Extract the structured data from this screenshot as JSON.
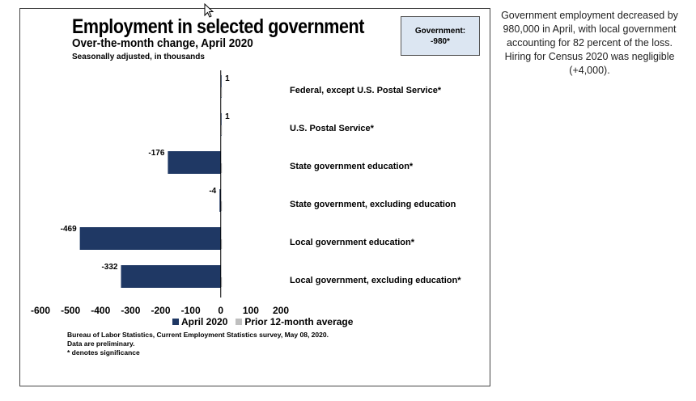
{
  "title": "Employment in selected government",
  "subtitle": "Over-the-month change, April 2020",
  "note": "Seasonally adjusted, in thousands",
  "government_box": {
    "label": "Government:",
    "value": "-980*"
  },
  "legend": [
    {
      "label": "April 2020",
      "color": "#1f3864"
    },
    {
      "label": "Prior 12-month average",
      "color": "#bfbfbf"
    }
  ],
  "source_lines": [
    "Bureau of Labor Statistics, Current Employment Statistics survey, May 08, 2020.",
    "Data are preliminary.",
    "* denotes significance"
  ],
  "side_text": "Government employment decreased by 980,000 in April, with local government accounting for 82 percent of the loss. Hiring for Census 2020 was negligible (+4,000).",
  "chart_data": {
    "type": "bar",
    "orientation": "horizontal",
    "categories": [
      "Federal, except U.S. Postal Service*",
      "U.S. Postal Service*",
      "State government education*",
      "State government, excluding education",
      "Local government education*",
      "Local government, excluding education*"
    ],
    "series": [
      {
        "name": "April 2020",
        "values": [
          1,
          1,
          -176,
          -4,
          -469,
          -332
        ],
        "labels": [
          "1",
          "1",
          "-176",
          "-4",
          "-469",
          "-332"
        ],
        "color": "#1f3864"
      },
      {
        "name": "Prior 12-month average",
        "values": [
          1,
          0,
          1,
          1,
          2,
          2
        ],
        "color": "#bfbfbf"
      }
    ],
    "xlim": [
      -600,
      200
    ],
    "xticks": [
      -600,
      -500,
      -400,
      -300,
      -200,
      -100,
      0,
      100,
      200
    ],
    "grid": false,
    "legend_position": "bottom"
  }
}
